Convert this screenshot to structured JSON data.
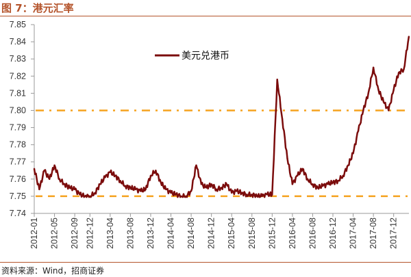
{
  "header": {
    "title": "图 7：港元汇率"
  },
  "footer": {
    "source": "资料来源：Wind，招商证券"
  },
  "colors": {
    "series": "#7b0c0c",
    "reference": "#f5a21e",
    "title": "#b4532a"
  },
  "chart_data": {
    "type": "line",
    "title": "港元汇率",
    "xlabel": "",
    "ylabel": "",
    "ylim": [
      7.74,
      7.85
    ],
    "yticks": [
      "7.74",
      "7.75",
      "7.76",
      "7.77",
      "7.78",
      "7.79",
      "7.80",
      "7.81",
      "7.82",
      "7.83",
      "7.84",
      "7.85"
    ],
    "xticks": [
      "2012-01",
      "2012-05",
      "2012-09",
      "2012-12",
      "2013-04",
      "2013-08",
      "2013-12",
      "2014-04",
      "2014-08",
      "2014-12",
      "2015-04",
      "2015-08",
      "2015-12",
      "2016-04",
      "2016-08",
      "2016-12",
      "2017-04",
      "2017-08",
      "2017-12"
    ],
    "grid": false,
    "legend_position": "top-center",
    "series": [
      {
        "name": "美元兑港币",
        "x": [
          "2012-01",
          "2012-02",
          "2012-03",
          "2012-04",
          "2012-05",
          "2012-06",
          "2012-07",
          "2012-08",
          "2012-09",
          "2012-10",
          "2012-11",
          "2012-12",
          "2013-01",
          "2013-02",
          "2013-03",
          "2013-04",
          "2013-05",
          "2013-06",
          "2013-07",
          "2013-08",
          "2013-09",
          "2013-10",
          "2013-11",
          "2013-12",
          "2014-01",
          "2014-02",
          "2014-03",
          "2014-04",
          "2014-05",
          "2014-06",
          "2014-07",
          "2014-08",
          "2014-09",
          "2014-10",
          "2014-11",
          "2014-12",
          "2015-01",
          "2015-02",
          "2015-03",
          "2015-04",
          "2015-05",
          "2015-06",
          "2015-07",
          "2015-08",
          "2015-09",
          "2015-10",
          "2015-11",
          "2015-12",
          "2016-01",
          "2016-02",
          "2016-03",
          "2016-04",
          "2016-05",
          "2016-06",
          "2016-07",
          "2016-08",
          "2016-09",
          "2016-10",
          "2016-11",
          "2016-12",
          "2017-01",
          "2017-02",
          "2017-03",
          "2017-04",
          "2017-05",
          "2017-06",
          "2017-07",
          "2017-08",
          "2017-09",
          "2017-10",
          "2017-11",
          "2017-12",
          "2018-01",
          "2018-02",
          "2018-03"
        ],
        "values": [
          7.766,
          7.754,
          7.765,
          7.76,
          7.768,
          7.76,
          7.757,
          7.755,
          7.754,
          7.751,
          7.75,
          7.75,
          7.752,
          7.757,
          7.761,
          7.764,
          7.762,
          7.759,
          7.756,
          7.755,
          7.754,
          7.753,
          7.754,
          7.762,
          7.765,
          7.758,
          7.754,
          7.752,
          7.751,
          7.75,
          7.75,
          7.753,
          7.768,
          7.757,
          7.755,
          7.757,
          7.754,
          7.755,
          7.757,
          7.752,
          7.753,
          7.752,
          7.751,
          7.751,
          7.75,
          7.75,
          7.751,
          7.751,
          7.818,
          7.795,
          7.772,
          7.757,
          7.762,
          7.766,
          7.76,
          7.757,
          7.755,
          7.756,
          7.757,
          7.758,
          7.759,
          7.762,
          7.768,
          7.775,
          7.788,
          7.8,
          7.81,
          7.825,
          7.812,
          7.805,
          7.8,
          7.812,
          7.822,
          7.824,
          7.843
        ]
      }
    ],
    "reference_lines": [
      {
        "value": 7.8,
        "style": "dash-dot"
      },
      {
        "value": 7.75,
        "style": "dashed"
      }
    ]
  }
}
